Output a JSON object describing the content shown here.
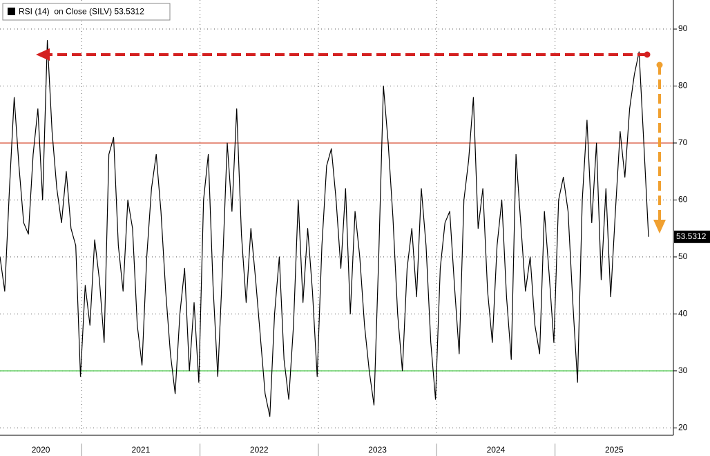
{
  "chart_data": {
    "type": "line",
    "year_labels": [
      "2020",
      "2021",
      "2022",
      "2023",
      "2024",
      "2025"
    ],
    "xlim": [
      2020.31,
      2026.0
    ],
    "xticks": [
      2021,
      2022,
      2023,
      2024,
      2025
    ],
    "ylim": [
      18.7,
      95.1
    ],
    "yticks": [
      20,
      30,
      40,
      50,
      60,
      70,
      80,
      90
    ],
    "grid": true,
    "hlines": [
      {
        "value": 70,
        "color": "#cc2200"
      },
      {
        "value": 30,
        "color": "#22bb22"
      }
    ],
    "series": [
      {
        "name": "RSI (14)  on Close (SILV) 53.5312",
        "color": "#000000",
        "x": [
          2020.31,
          2020.35,
          2020.39,
          2020.43,
          2020.47,
          2020.51,
          2020.55,
          2020.59,
          2020.63,
          2020.67,
          2020.71,
          2020.75,
          2020.79,
          2020.83,
          2020.87,
          2020.91,
          2020.95,
          2020.99,
          2021.03,
          2021.07,
          2021.11,
          2021.15,
          2021.19,
          2021.23,
          2021.27,
          2021.31,
          2021.35,
          2021.39,
          2021.43,
          2021.47,
          2021.51,
          2021.55,
          2021.59,
          2021.63,
          2021.67,
          2021.71,
          2021.75,
          2021.79,
          2021.83,
          2021.87,
          2021.91,
          2021.95,
          2021.99,
          2022.03,
          2022.07,
          2022.11,
          2022.15,
          2022.19,
          2022.23,
          2022.27,
          2022.31,
          2022.35,
          2022.39,
          2022.43,
          2022.47,
          2022.51,
          2022.55,
          2022.59,
          2022.63,
          2022.67,
          2022.71,
          2022.75,
          2022.79,
          2022.83,
          2022.87,
          2022.91,
          2022.95,
          2022.99,
          2023.03,
          2023.07,
          2023.11,
          2023.15,
          2023.19,
          2023.23,
          2023.27,
          2023.31,
          2023.35,
          2023.39,
          2023.43,
          2023.47,
          2023.51,
          2023.55,
          2023.59,
          2023.63,
          2023.67,
          2023.71,
          2023.75,
          2023.79,
          2023.83,
          2023.87,
          2023.91,
          2023.95,
          2023.99,
          2024.03,
          2024.07,
          2024.11,
          2024.15,
          2024.19,
          2024.23,
          2024.27,
          2024.31,
          2024.35,
          2024.39,
          2024.43,
          2024.47,
          2024.51,
          2024.55,
          2024.59,
          2024.63,
          2024.67,
          2024.71,
          2024.75,
          2024.79,
          2024.83,
          2024.87,
          2024.91,
          2024.95,
          2024.99,
          2025.03,
          2025.07,
          2025.11,
          2025.15,
          2025.19,
          2025.23,
          2025.27,
          2025.31,
          2025.35,
          2025.39,
          2025.43,
          2025.47,
          2025.51,
          2025.55,
          2025.59,
          2025.63,
          2025.67,
          2025.71,
          2025.75,
          2025.79
        ],
        "values": [
          50,
          44,
          62,
          78,
          66,
          56,
          54,
          68,
          76,
          60,
          88,
          72,
          62,
          56,
          65,
          55,
          52,
          29,
          45,
          38,
          53,
          46,
          35,
          68,
          71,
          52,
          44,
          60,
          55,
          38,
          31,
          50,
          62,
          68,
          58,
          44,
          33,
          26,
          40,
          48,
          30,
          42,
          28,
          60,
          68,
          45,
          29,
          48,
          70,
          58,
          76,
          54,
          42,
          55,
          46,
          36,
          26,
          22,
          40,
          50,
          32,
          25,
          38,
          60,
          42,
          55,
          44,
          29,
          52,
          66,
          69,
          60,
          48,
          62,
          40,
          58,
          50,
          38,
          30,
          24,
          50,
          80,
          70,
          57,
          40,
          30,
          48,
          55,
          43,
          62,
          52,
          35,
          25,
          48,
          56,
          58,
          45,
          33,
          60,
          67,
          78,
          55,
          62,
          44,
          35,
          52,
          60,
          43,
          32,
          68,
          56,
          44,
          50,
          38,
          33,
          58,
          47,
          35,
          60,
          64,
          58,
          42,
          28,
          60,
          74,
          56,
          70,
          46,
          62,
          43,
          58,
          72,
          64,
          76,
          82,
          86,
          70,
          53.5312
        ]
      }
    ]
  }
}
